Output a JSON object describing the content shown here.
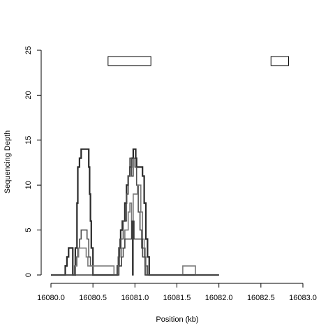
{
  "chart_data": {
    "type": "line",
    "title": "",
    "xlabel": "Position (kb)",
    "ylabel": "Sequencing Depth",
    "xlim": [
      16080.0,
      16083.0
    ],
    "ylim": [
      0,
      25
    ],
    "grid": false,
    "x_ticks": [
      16080.0,
      16080.5,
      16081.0,
      16081.5,
      16082.0,
      16082.5,
      16083.0
    ],
    "x_tick_labels": [
      "16080.0",
      "16080.5",
      "16081.0",
      "16081.5",
      "16082.0",
      "16082.5",
      "16083.0"
    ],
    "y_ticks": [
      0,
      5,
      10,
      15,
      20,
      25
    ],
    "y_tick_labels": [
      "0",
      "5",
      "10",
      "15",
      "20",
      "25"
    ],
    "annotation_boxes": [
      {
        "x_start": 16080.68,
        "x_end": 16081.19,
        "y_bottom": 23.3,
        "y_top": 24.3
      },
      {
        "x_start": 16082.62,
        "x_end": 16082.83,
        "y_bottom": 23.3,
        "y_top": 24.3
      }
    ],
    "series": [
      {
        "color": "#2a2a2a",
        "width": 2.2,
        "points": [
          [
            16080.0,
            0
          ],
          [
            16080.17,
            0
          ],
          [
            16080.17,
            1
          ],
          [
            16080.19,
            1
          ],
          [
            16080.19,
            2
          ],
          [
            16080.21,
            2
          ],
          [
            16080.21,
            3
          ],
          [
            16080.26,
            3
          ],
          [
            16080.26,
            0
          ],
          [
            16080.29,
            0
          ],
          [
            16080.29,
            3
          ],
          [
            16080.31,
            3
          ],
          [
            16080.31,
            8
          ],
          [
            16080.32,
            8
          ],
          [
            16080.32,
            12
          ],
          [
            16080.34,
            12
          ],
          [
            16080.34,
            13
          ],
          [
            16080.36,
            13
          ],
          [
            16080.36,
            14
          ],
          [
            16080.45,
            14
          ],
          [
            16080.45,
            12
          ],
          [
            16080.46,
            12
          ],
          [
            16080.46,
            9
          ],
          [
            16080.47,
            9
          ],
          [
            16080.47,
            6
          ],
          [
            16080.48,
            6
          ],
          [
            16080.48,
            3
          ],
          [
            16080.5,
            3
          ],
          [
            16080.5,
            0
          ],
          [
            16080.79,
            0
          ],
          [
            16080.79,
            1
          ],
          [
            16080.81,
            1
          ],
          [
            16080.81,
            3
          ],
          [
            16080.83,
            3
          ],
          [
            16080.83,
            5
          ],
          [
            16080.85,
            5
          ],
          [
            16080.85,
            6
          ],
          [
            16080.88,
            6
          ],
          [
            16080.88,
            8
          ],
          [
            16080.9,
            8
          ],
          [
            16080.9,
            10
          ],
          [
            16080.92,
            10
          ],
          [
            16080.92,
            11
          ],
          [
            16080.94,
            11
          ],
          [
            16080.94,
            12
          ],
          [
            16080.96,
            12
          ],
          [
            16080.96,
            13
          ],
          [
            16080.98,
            13
          ],
          [
            16080.98,
            14
          ],
          [
            16081.01,
            14
          ],
          [
            16081.01,
            13
          ],
          [
            16081.02,
            13
          ],
          [
            16081.02,
            12
          ],
          [
            16081.09,
            12
          ],
          [
            16081.09,
            11
          ],
          [
            16081.11,
            11
          ],
          [
            16081.11,
            8
          ],
          [
            16081.13,
            8
          ],
          [
            16081.13,
            4
          ],
          [
            16081.15,
            4
          ],
          [
            16081.15,
            2
          ],
          [
            16081.17,
            2
          ],
          [
            16081.17,
            0
          ],
          [
            16082.0,
            0
          ]
        ]
      },
      {
        "color": "#505050",
        "width": 1.6,
        "points": [
          [
            16080.0,
            0
          ],
          [
            16080.28,
            0
          ],
          [
            16080.28,
            1
          ],
          [
            16080.3,
            1
          ],
          [
            16080.3,
            2
          ],
          [
            16080.32,
            2
          ],
          [
            16080.32,
            3
          ],
          [
            16080.34,
            3
          ],
          [
            16080.34,
            4
          ],
          [
            16080.36,
            4
          ],
          [
            16080.36,
            5
          ],
          [
            16080.43,
            5
          ],
          [
            16080.43,
            4
          ],
          [
            16080.45,
            4
          ],
          [
            16080.45,
            2
          ],
          [
            16080.47,
            2
          ],
          [
            16080.47,
            1
          ],
          [
            16080.5,
            1
          ],
          [
            16080.5,
            0
          ],
          [
            16080.8,
            0
          ],
          [
            16080.8,
            2
          ],
          [
            16080.82,
            2
          ],
          [
            16080.82,
            4
          ],
          [
            16080.86,
            4
          ],
          [
            16080.86,
            6
          ],
          [
            16080.9,
            6
          ],
          [
            16080.9,
            9
          ],
          [
            16080.92,
            9
          ],
          [
            16080.92,
            11
          ],
          [
            16080.94,
            11
          ],
          [
            16080.94,
            13
          ],
          [
            16080.96,
            13
          ],
          [
            16080.96,
            11
          ],
          [
            16080.98,
            11
          ],
          [
            16080.98,
            13
          ],
          [
            16081.0,
            13
          ],
          [
            16081.0,
            12
          ],
          [
            16081.02,
            12
          ],
          [
            16081.02,
            10
          ],
          [
            16081.04,
            10
          ],
          [
            16081.04,
            7
          ],
          [
            16081.06,
            7
          ],
          [
            16081.06,
            5
          ],
          [
            16081.08,
            5
          ],
          [
            16081.08,
            3
          ],
          [
            16081.12,
            3
          ],
          [
            16081.12,
            1
          ],
          [
            16081.15,
            1
          ],
          [
            16081.15,
            0
          ],
          [
            16082.0,
            0
          ]
        ]
      },
      {
        "color": "#7a7a7a",
        "width": 1.6,
        "points": [
          [
            16080.0,
            0
          ],
          [
            16080.29,
            0
          ],
          [
            16080.29,
            1
          ],
          [
            16080.31,
            1
          ],
          [
            16080.31,
            2
          ],
          [
            16080.33,
            2
          ],
          [
            16080.33,
            3
          ],
          [
            16080.42,
            3
          ],
          [
            16080.42,
            2
          ],
          [
            16080.44,
            2
          ],
          [
            16080.44,
            1
          ],
          [
            16080.5,
            1
          ],
          [
            16080.5,
            1
          ],
          [
            16080.75,
            1
          ],
          [
            16080.75,
            0
          ],
          [
            16080.8,
            0
          ],
          [
            16080.8,
            1
          ],
          [
            16080.84,
            1
          ],
          [
            16080.84,
            3
          ],
          [
            16080.88,
            3
          ],
          [
            16080.88,
            5
          ],
          [
            16080.92,
            5
          ],
          [
            16080.92,
            7
          ],
          [
            16080.94,
            7
          ],
          [
            16080.94,
            8
          ],
          [
            16080.96,
            8
          ],
          [
            16080.96,
            6
          ],
          [
            16080.98,
            6
          ],
          [
            16080.98,
            9
          ],
          [
            16081.03,
            9
          ],
          [
            16081.03,
            10
          ],
          [
            16081.07,
            10
          ],
          [
            16081.07,
            7
          ],
          [
            16081.09,
            7
          ],
          [
            16081.09,
            4
          ],
          [
            16081.11,
            4
          ],
          [
            16081.11,
            2
          ],
          [
            16081.13,
            2
          ],
          [
            16081.13,
            0
          ],
          [
            16081.57,
            0
          ],
          [
            16081.57,
            1
          ],
          [
            16081.72,
            1
          ],
          [
            16081.72,
            0
          ],
          [
            16082.0,
            0
          ]
        ]
      },
      {
        "color": "#3c3c3c",
        "width": 1.4,
        "points": [
          [
            16080.0,
            0
          ],
          [
            16080.81,
            0
          ],
          [
            16080.81,
            1
          ],
          [
            16080.84,
            1
          ],
          [
            16080.84,
            2
          ],
          [
            16080.86,
            2
          ],
          [
            16080.86,
            3
          ],
          [
            16080.88,
            3
          ],
          [
            16080.88,
            4
          ],
          [
            16080.96,
            4
          ],
          [
            16080.96,
            6
          ],
          [
            16080.97,
            6
          ],
          [
            16080.97,
            0
          ],
          [
            16080.98,
            0
          ],
          [
            16080.98,
            6
          ],
          [
            16080.99,
            6
          ],
          [
            16080.99,
            4
          ],
          [
            16081.09,
            4
          ],
          [
            16081.09,
            2
          ],
          [
            16081.12,
            2
          ],
          [
            16081.12,
            0
          ],
          [
            16082.0,
            0
          ]
        ]
      }
    ]
  }
}
